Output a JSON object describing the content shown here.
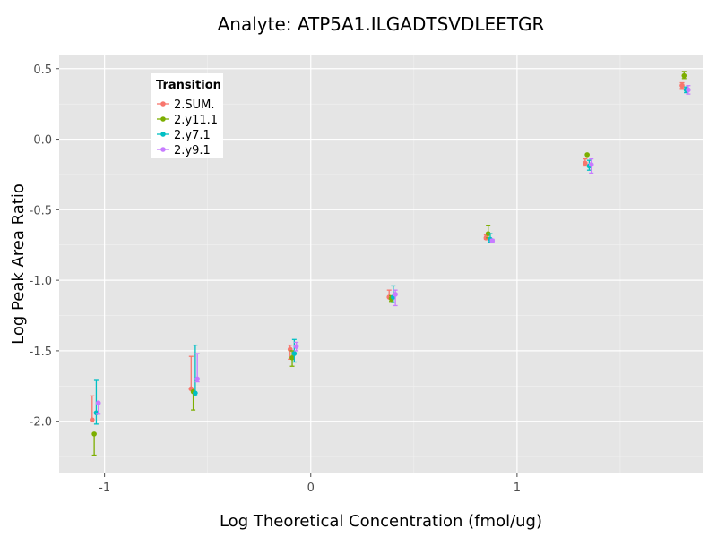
{
  "chart_data": {
    "type": "scatter",
    "title": "Analyte: ATP5A1.ILGADTSVDLEETGR",
    "xlabel": "Log Theoretical Concentration (fmol/ug)",
    "ylabel": "Log Peak Area Ratio",
    "xlim": [
      -1.22,
      1.9
    ],
    "ylim": [
      -2.37,
      0.6
    ],
    "x_ticks": [
      -1,
      0,
      1
    ],
    "x_tick_labels": [
      "-1",
      "0",
      "1"
    ],
    "y_ticks": [
      0.5,
      0.0,
      -0.5,
      -1.0,
      -1.5,
      -2.0
    ],
    "y_tick_labels": [
      "0.5",
      "0.0",
      "-0.5",
      "-1.0",
      "-1.5",
      "-2.0"
    ],
    "legend": {
      "title": "Transition",
      "position": "top-left"
    },
    "series": [
      {
        "name": "2.SUM.",
        "color": "#F8766D",
        "points": [
          {
            "x": -1.06,
            "y": -1.99,
            "lo": -1.99,
            "hi": -1.82
          },
          {
            "x": -0.58,
            "y": -1.77,
            "lo": -1.77,
            "hi": -1.54
          },
          {
            "x": -0.1,
            "y": -1.49,
            "lo": -1.56,
            "hi": -1.46
          },
          {
            "x": 0.38,
            "y": -1.12,
            "lo": -1.12,
            "hi": -1.07
          },
          {
            "x": 0.85,
            "y": -0.7,
            "lo": -0.71,
            "hi": -0.68
          },
          {
            "x": 1.33,
            "y": -0.17,
            "lo": -0.19,
            "hi": -0.14
          },
          {
            "x": 1.8,
            "y": 0.38,
            "lo": 0.36,
            "hi": 0.4
          }
        ]
      },
      {
        "name": "2.y11.1",
        "color": "#7CAE00",
        "points": [
          {
            "x": -1.05,
            "y": -2.09,
            "lo": -2.24,
            "hi": -2.09
          },
          {
            "x": -0.57,
            "y": -1.79,
            "lo": -1.92,
            "hi": -1.79
          },
          {
            "x": -0.09,
            "y": -1.55,
            "lo": -1.61,
            "hi": -1.5
          },
          {
            "x": 0.39,
            "y": -1.13,
            "lo": -1.15,
            "hi": -1.11
          },
          {
            "x": 0.86,
            "y": -0.67,
            "lo": -0.7,
            "hi": -0.61
          },
          {
            "x": 1.34,
            "y": -0.11,
            "lo": -0.11,
            "hi": -0.11
          },
          {
            "x": 1.81,
            "y": 0.45,
            "lo": 0.43,
            "hi": 0.48
          }
        ]
      },
      {
        "name": "2.y7.1",
        "color": "#00BFC4",
        "points": [
          {
            "x": -1.04,
            "y": -1.94,
            "lo": -2.02,
            "hi": -1.71
          },
          {
            "x": -0.56,
            "y": -1.8,
            "lo": -1.82,
            "hi": -1.46
          },
          {
            "x": -0.08,
            "y": -1.52,
            "lo": -1.58,
            "hi": -1.42
          },
          {
            "x": 0.4,
            "y": -1.12,
            "lo": -1.16,
            "hi": -1.04
          },
          {
            "x": 0.87,
            "y": -0.71,
            "lo": -0.73,
            "hi": -0.67
          },
          {
            "x": 1.35,
            "y": -0.19,
            "lo": -0.22,
            "hi": -0.15
          },
          {
            "x": 1.82,
            "y": 0.35,
            "lo": 0.33,
            "hi": 0.37
          }
        ]
      },
      {
        "name": "2.y9.1",
        "color": "#C77CFF",
        "points": [
          {
            "x": -1.03,
            "y": -1.87,
            "lo": -1.95,
            "hi": -1.87
          },
          {
            "x": -0.55,
            "y": -1.7,
            "lo": -1.72,
            "hi": -1.52
          },
          {
            "x": -0.07,
            "y": -1.47,
            "lo": -1.5,
            "hi": -1.44
          },
          {
            "x": 0.41,
            "y": -1.1,
            "lo": -1.18,
            "hi": -1.07
          },
          {
            "x": 0.88,
            "y": -0.72,
            "lo": -0.73,
            "hi": -0.71
          },
          {
            "x": 1.36,
            "y": -0.18,
            "lo": -0.24,
            "hi": -0.14
          },
          {
            "x": 1.83,
            "y": 0.35,
            "lo": 0.32,
            "hi": 0.38
          }
        ]
      }
    ]
  }
}
